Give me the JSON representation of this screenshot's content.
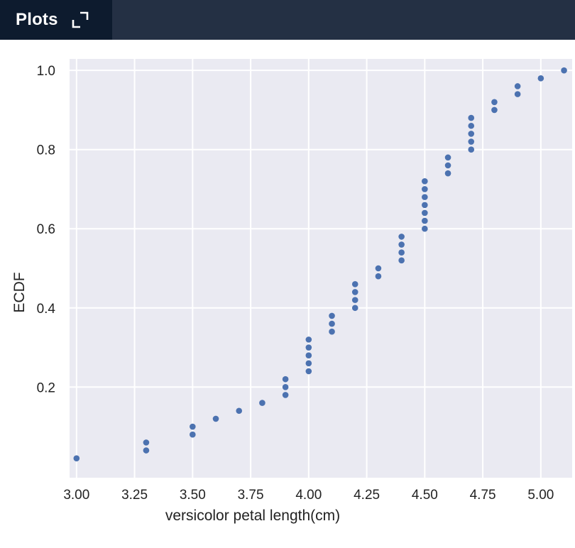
{
  "header": {
    "tab_label": "Plots",
    "expand_icon": "expand-icon",
    "bar_color": "#243044",
    "tab_color": "#0d1b2e"
  },
  "chart_data": {
    "type": "scatter",
    "xlabel": "versicolor petal length(cm)",
    "ylabel": "ECDF",
    "xlim": [
      2.97,
      5.135
    ],
    "ylim": [
      -0.029,
      1.029
    ],
    "xticks": [
      "3.00",
      "3.25",
      "3.50",
      "3.75",
      "4.00",
      "4.25",
      "4.50",
      "4.75",
      "5.00"
    ],
    "yticks": [
      "0.2",
      "0.4",
      "0.6",
      "0.8",
      "1.0"
    ],
    "grid": true,
    "background_color": "#eaeaf2",
    "marker_color": "#4c72b0",
    "series": [
      {
        "x": [
          3.0,
          3.3,
          3.3,
          3.5,
          3.5,
          3.6,
          3.7,
          3.8,
          3.9,
          3.9,
          3.9,
          4.0,
          4.0,
          4.0,
          4.0,
          4.0,
          4.1,
          4.1,
          4.1,
          4.2,
          4.2,
          4.2,
          4.2,
          4.3,
          4.3,
          4.4,
          4.4,
          4.4,
          4.4,
          4.5,
          4.5,
          4.5,
          4.5,
          4.5,
          4.5,
          4.5,
          4.6,
          4.6,
          4.6,
          4.7,
          4.7,
          4.7,
          4.7,
          4.7,
          4.8,
          4.8,
          4.9,
          4.9,
          5.0,
          5.1
        ],
        "y": [
          0.02,
          0.04,
          0.06,
          0.08,
          0.1,
          0.12,
          0.14,
          0.16,
          0.18,
          0.2,
          0.22,
          0.24,
          0.26,
          0.28,
          0.3,
          0.32,
          0.34,
          0.36,
          0.38,
          0.4,
          0.42,
          0.44,
          0.46,
          0.48,
          0.5,
          0.52,
          0.54,
          0.56,
          0.58,
          0.6,
          0.62,
          0.64,
          0.66,
          0.68,
          0.7,
          0.72,
          0.74,
          0.76,
          0.78,
          0.8,
          0.82,
          0.84,
          0.86,
          0.88,
          0.9,
          0.92,
          0.94,
          0.96,
          0.98,
          1.0
        ]
      }
    ]
  }
}
